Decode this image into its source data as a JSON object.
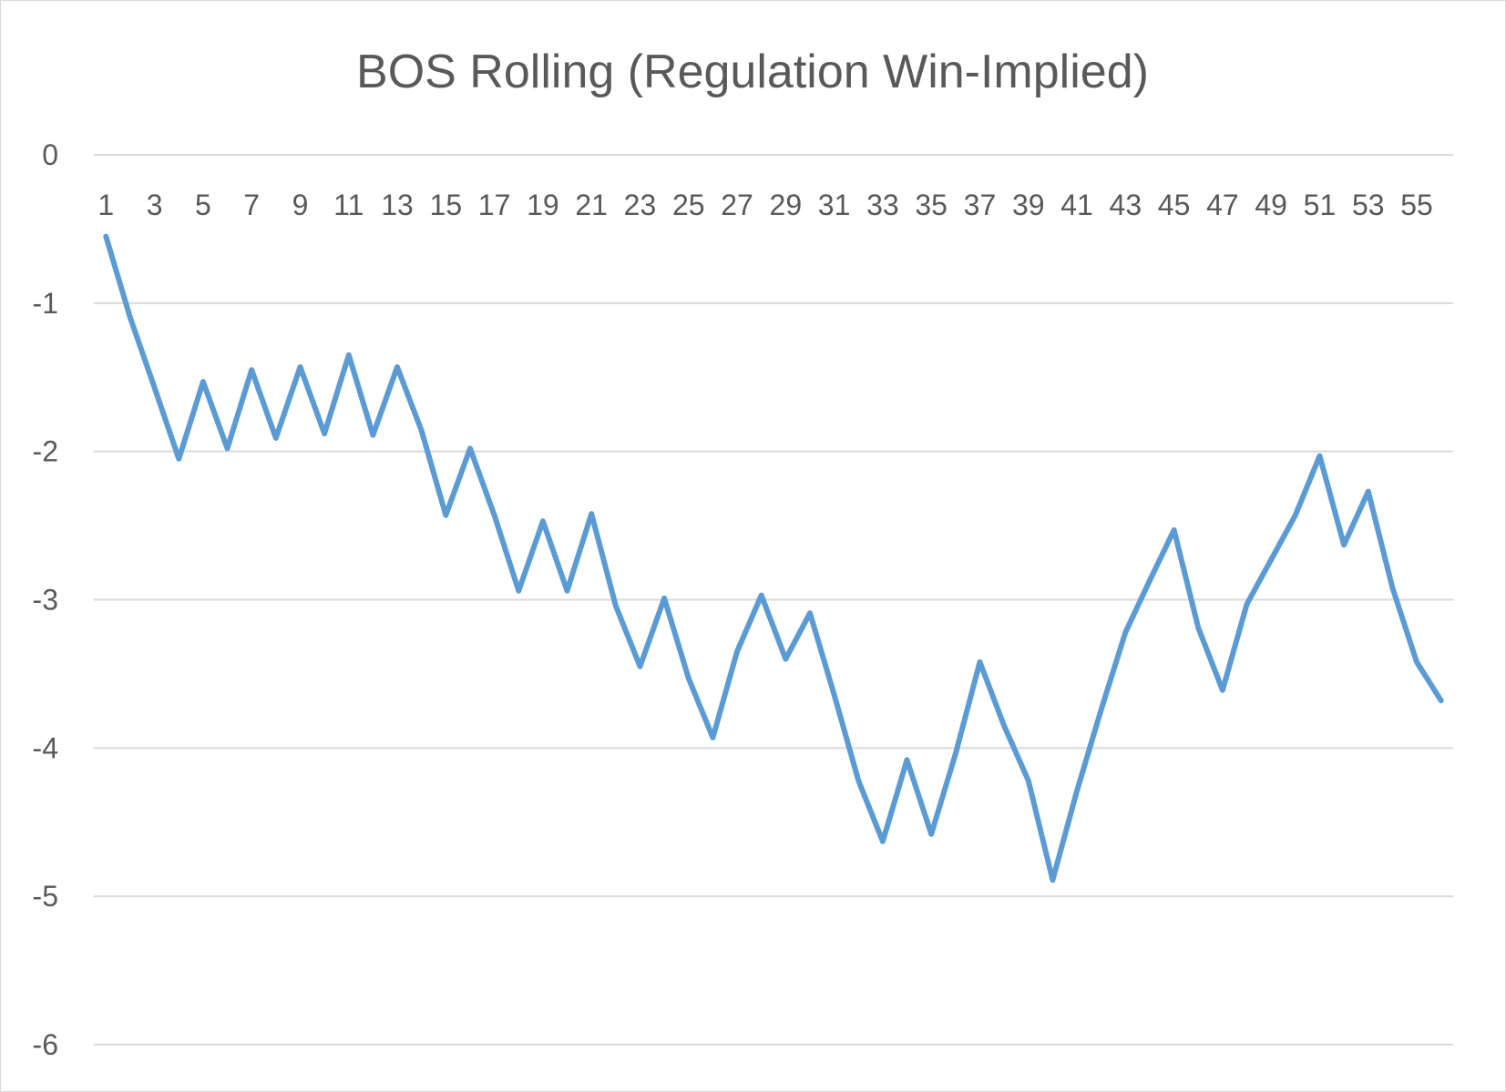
{
  "chart_data": {
    "type": "line",
    "title": "BOS Rolling (Regulation Win-Implied)",
    "xlabel": "",
    "ylabel": "",
    "ylim": [
      -6,
      0
    ],
    "yticks": [
      0,
      -1,
      -2,
      -3,
      -4,
      -5,
      -6
    ],
    "x": [
      1,
      2,
      3,
      4,
      5,
      6,
      7,
      8,
      9,
      10,
      11,
      12,
      13,
      14,
      15,
      16,
      17,
      18,
      19,
      20,
      21,
      22,
      23,
      24,
      25,
      26,
      27,
      28,
      29,
      30,
      31,
      32,
      33,
      34,
      35,
      36,
      37,
      38,
      39,
      40,
      41,
      42,
      43,
      44,
      45,
      46,
      47,
      48,
      49,
      50,
      51,
      52,
      53,
      54,
      55,
      56
    ],
    "x_tick_labels": [
      "1",
      "3",
      "5",
      "7",
      "9",
      "11",
      "13",
      "15",
      "17",
      "19",
      "21",
      "23",
      "25",
      "27",
      "29",
      "31",
      "33",
      "35",
      "37",
      "39",
      "41",
      "43",
      "45",
      "47",
      "49",
      "51",
      "53",
      "55"
    ],
    "x_axis_position": "top",
    "grid": true,
    "legend": "none",
    "series": [
      {
        "color": "#5B9BD5",
        "values": [
          -0.55,
          -1.1,
          -1.57,
          -2.05,
          -1.53,
          -1.98,
          -1.45,
          -1.91,
          -1.43,
          -1.88,
          -1.35,
          -1.89,
          -1.43,
          -1.86,
          -2.43,
          -1.98,
          -2.43,
          -2.94,
          -2.47,
          -2.94,
          -2.42,
          -3.04,
          -3.45,
          -2.99,
          -3.53,
          -3.93,
          -3.35,
          -2.97,
          -3.4,
          -3.09,
          -3.64,
          -4.22,
          -4.63,
          -4.08,
          -4.58,
          -4.04,
          -3.42,
          -3.85,
          -4.22,
          -4.89,
          -4.29,
          -3.74,
          -3.22,
          -2.87,
          -2.53,
          -3.19,
          -3.61,
          -3.03,
          -2.73,
          -2.43,
          -2.03,
          -2.63,
          -2.27,
          -2.92,
          -3.42,
          -3.68
        ]
      }
    ]
  }
}
